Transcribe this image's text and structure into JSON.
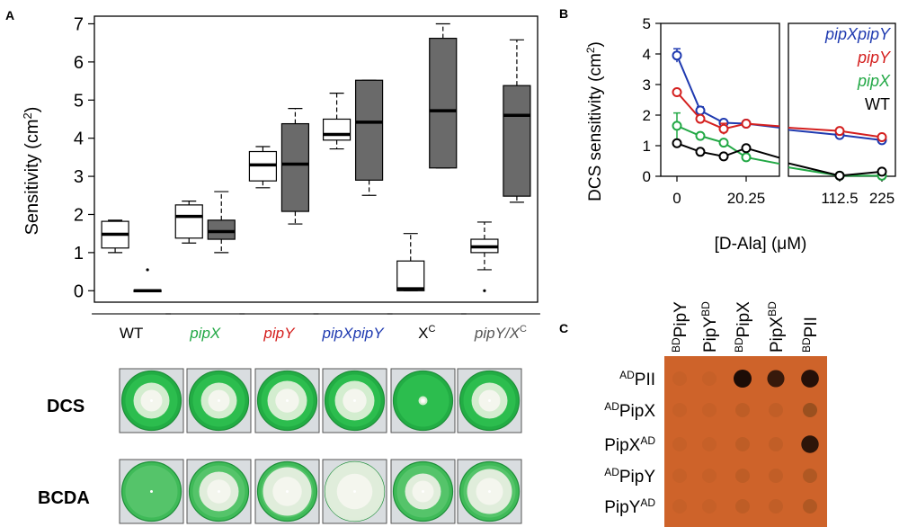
{
  "colors": {
    "wt": "#000000",
    "pipX": "#22a845",
    "pipY": "#d4201f",
    "pipXpipY": "#1f3ab0",
    "xc": "#000000",
    "pipYxc": "#555555",
    "dark_box": "#6a6a6a",
    "plate_green": "#2fb84a",
    "halo": "#eef3e4",
    "orange": "#d4692a",
    "dot": "#1a0a05"
  },
  "panel_a": {
    "label": "A",
    "ylabel": "Sensitivity (cm",
    "ylabel_sup": "2",
    "ylabel_close": ")",
    "strains": [
      {
        "name": "WT",
        "color": "#000000",
        "italic": false,
        "sup": ""
      },
      {
        "name": "pipX",
        "color": "#22a845",
        "italic": true,
        "sup": ""
      },
      {
        "name": "pipY",
        "color": "#d4201f",
        "italic": true,
        "sup": ""
      },
      {
        "name": "pipXpipY",
        "color": "#1f3ab0",
        "italic": true,
        "sup": ""
      },
      {
        "name": "X",
        "color": "#000000",
        "italic": false,
        "sup": "C"
      },
      {
        "name": "pipY/X",
        "color": "#555555",
        "italic": true,
        "sup": "C"
      }
    ],
    "row_labels": [
      "DCS",
      "BCDA"
    ]
  },
  "panel_b": {
    "label": "B",
    "xlabel": "[D-Ala] (μM)",
    "ylabel": "DCS sensitivity (cm",
    "ylabel_sup": "2",
    "ylabel_close": ")"
  },
  "panel_c": {
    "label": "C",
    "columns": [
      {
        "pre": "BD",
        "main": "PipY",
        "post": ""
      },
      {
        "pre": "",
        "main": "PipY",
        "post": "BD"
      },
      {
        "pre": "BD",
        "main": "PipX",
        "post": ""
      },
      {
        "pre": "",
        "main": "PipX",
        "post": "BD"
      },
      {
        "pre": "BD",
        "main": "PII",
        "post": ""
      }
    ],
    "rows": [
      {
        "pre": "AD",
        "main": "PII",
        "post": ""
      },
      {
        "pre": "AD",
        "main": "PipX",
        "post": ""
      },
      {
        "pre": "",
        "main": "PipX",
        "post": "AD"
      },
      {
        "pre": "AD",
        "main": "PipY",
        "post": ""
      },
      {
        "pre": "",
        "main": "PipY",
        "post": "AD"
      }
    ],
    "spots": [
      [
        0,
        0,
        0,
        0,
        0
      ],
      [
        0,
        0,
        0,
        0,
        0
      ],
      [
        0,
        0,
        0,
        0,
        0
      ],
      [
        0,
        0,
        0,
        0,
        0
      ],
      [
        0,
        0,
        0,
        0,
        0
      ]
    ],
    "spot_intensity": [
      [
        0.05,
        0.05,
        1.0,
        0.85,
        0.95
      ],
      [
        0.05,
        0.05,
        0.1,
        0.08,
        0.35
      ],
      [
        0.05,
        0.05,
        0.1,
        0.08,
        0.9
      ],
      [
        0.05,
        0.05,
        0.1,
        0.08,
        0.2
      ],
      [
        0.05,
        0.05,
        0.1,
        0.08,
        0.2
      ]
    ]
  },
  "chart_data": [
    {
      "type": "box",
      "title": "",
      "ylabel": "Sensitivity (cm2)",
      "ylim": [
        -0.3,
        7.2
      ],
      "yticks": [
        0,
        1,
        2,
        3,
        4,
        5,
        6,
        7
      ],
      "categories": [
        "WT",
        "pipX",
        "pipY",
        "pipXpipY",
        "XC",
        "pipY/XC"
      ],
      "series": [
        {
          "name": "DCS",
          "color": "#ffffff",
          "boxes": [
            {
              "min": 1.0,
              "q1": 1.12,
              "median": 1.48,
              "q3": 1.82,
              "max": 1.85
            },
            {
              "min": 1.25,
              "q1": 1.38,
              "median": 1.95,
              "q3": 2.25,
              "max": 2.35
            },
            {
              "min": 2.7,
              "q1": 2.88,
              "median": 3.3,
              "q3": 3.65,
              "max": 3.78
            },
            {
              "min": 3.72,
              "q1": 3.95,
              "median": 4.1,
              "q3": 4.5,
              "max": 5.18
            },
            {
              "min": 0.0,
              "q1": 0.0,
              "median": 0.05,
              "q3": 0.78,
              "max": 1.5
            },
            {
              "min": 0.55,
              "q1": 1.0,
              "median": 1.15,
              "q3": 1.35,
              "max": 1.8
            }
          ],
          "outliers": [
            [],
            [],
            [],
            [],
            [],
            [
              0.0
            ]
          ]
        },
        {
          "name": "BCDA",
          "color": "#6a6a6a",
          "boxes": [
            {
              "min": 0.0,
              "q1": 0.0,
              "median": 0.0,
              "q3": 0.02,
              "max": 0.02
            },
            {
              "min": 1.0,
              "q1": 1.35,
              "median": 1.55,
              "q3": 1.85,
              "max": 2.6
            },
            {
              "min": 1.75,
              "q1": 2.08,
              "median": 3.32,
              "q3": 4.38,
              "max": 4.78
            },
            {
              "min": 2.5,
              "q1": 2.9,
              "median": 4.42,
              "q3": 5.52,
              "max": 5.52
            },
            {
              "min": 3.22,
              "q1": 3.22,
              "median": 4.72,
              "q3": 6.62,
              "max": 7.0
            },
            {
              "min": 2.32,
              "q1": 2.48,
              "median": 4.6,
              "q3": 5.38,
              "max": 6.58
            }
          ],
          "outliers": [
            [
              0.55
            ],
            [],
            [],
            [],
            [],
            []
          ]
        }
      ]
    },
    {
      "type": "line",
      "xlabel": "[D-Ala] (μM)",
      "ylabel": "DCS sensitivity (cm2)",
      "ylim": [
        0,
        5
      ],
      "yticks": [
        0,
        1,
        2,
        3,
        4,
        5
      ],
      "xtick_labels": [
        "0",
        "20.25",
        "112.5",
        "225"
      ],
      "x": [
        0,
        6.75,
        13.5,
        20.25,
        112.5,
        225
      ],
      "series": [
        {
          "name": "pipXpipY",
          "color": "#1f3ab0",
          "values": [
            3.95,
            2.15,
            1.75,
            1.72,
            1.35,
            1.18
          ],
          "errors": [
            0.22,
            0.12,
            0.05,
            0.05,
            0.05,
            0.05
          ]
        },
        {
          "name": "pipY",
          "color": "#d4201f",
          "values": [
            2.75,
            1.88,
            1.55,
            1.72,
            1.48,
            1.28
          ],
          "errors": [
            0.05,
            0.05,
            0.18,
            0.05,
            0.05,
            0.05
          ]
        },
        {
          "name": "pipX",
          "color": "#22a845",
          "values": [
            1.65,
            1.32,
            1.1,
            0.62,
            0.02,
            0.02
          ],
          "errors": [
            0.42,
            0.05,
            0.05,
            0.05,
            0.05,
            0.05
          ]
        },
        {
          "name": "WT",
          "color": "#000000",
          "values": [
            1.08,
            0.8,
            0.65,
            0.92,
            0.02,
            0.15
          ],
          "errors": [
            0.05,
            0.05,
            0.05,
            0.05,
            0.05,
            0.05
          ]
        }
      ]
    }
  ]
}
